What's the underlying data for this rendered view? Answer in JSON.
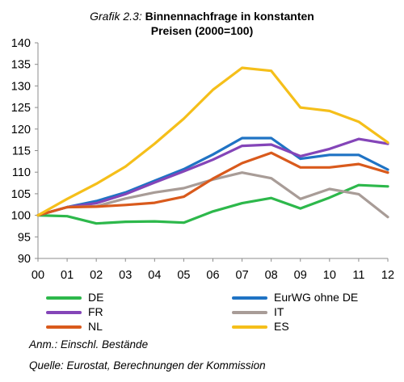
{
  "figure": {
    "title_prefix": "Grafik 2.3:",
    "title_line1": "Binnennachfrage in konstanten",
    "title_line2": "Preisen (2000=100)"
  },
  "notes": {
    "annotation": "Anm.: Einschl. Bestände",
    "source": "Quelle: Eurostat, Berechnungen der Kommission"
  },
  "chart_data": {
    "type": "line",
    "title": "Grafik 2.3: Binnennachfrage in konstanten Preisen (2000=100)",
    "xlabel": "",
    "ylabel": "",
    "x": [
      "00",
      "01",
      "02",
      "03",
      "04",
      "05",
      "06",
      "07",
      "08",
      "09",
      "10",
      "11",
      "12"
    ],
    "ylim": [
      90,
      140
    ],
    "yticks": [
      90,
      95,
      100,
      105,
      110,
      115,
      120,
      125,
      130,
      135,
      140
    ],
    "grid": false,
    "legend_position": "bottom",
    "series": [
      {
        "name": "DE",
        "color": "#2db84b",
        "values": [
          100,
          99.8,
          98.1,
          98.5,
          98.6,
          98.3,
          100.9,
          102.8,
          104.0,
          101.6,
          104.1,
          107.0,
          106.7
        ]
      },
      {
        "name": "EurWG ohne DE",
        "color": "#1f73c4",
        "values": [
          100,
          101.9,
          103.3,
          105.3,
          108.0,
          110.7,
          114.1,
          117.9,
          117.9,
          113.1,
          114.0,
          114.0,
          110.6
        ]
      },
      {
        "name": "FR",
        "color": "#8445b8",
        "values": [
          100,
          101.9,
          102.8,
          104.9,
          107.6,
          110.2,
          112.9,
          116.1,
          116.4,
          113.7,
          115.4,
          117.7,
          116.6
        ]
      },
      {
        "name": "IT",
        "color": "#a89c97",
        "values": [
          100,
          101.9,
          102.1,
          103.9,
          105.3,
          106.3,
          108.3,
          109.9,
          108.6,
          103.8,
          106.1,
          104.9,
          99.6
        ]
      },
      {
        "name": "NL",
        "color": "#d95a1c",
        "values": [
          100,
          101.9,
          102.0,
          102.4,
          102.9,
          104.3,
          108.5,
          112.1,
          114.5,
          111.1,
          111.1,
          111.9,
          109.9
        ]
      },
      {
        "name": "ES",
        "color": "#f5bf1a",
        "values": [
          100,
          103.8,
          107.3,
          111.3,
          116.6,
          122.4,
          129.1,
          134.2,
          133.5,
          125.0,
          124.2,
          121.7,
          116.9
        ]
      }
    ]
  }
}
